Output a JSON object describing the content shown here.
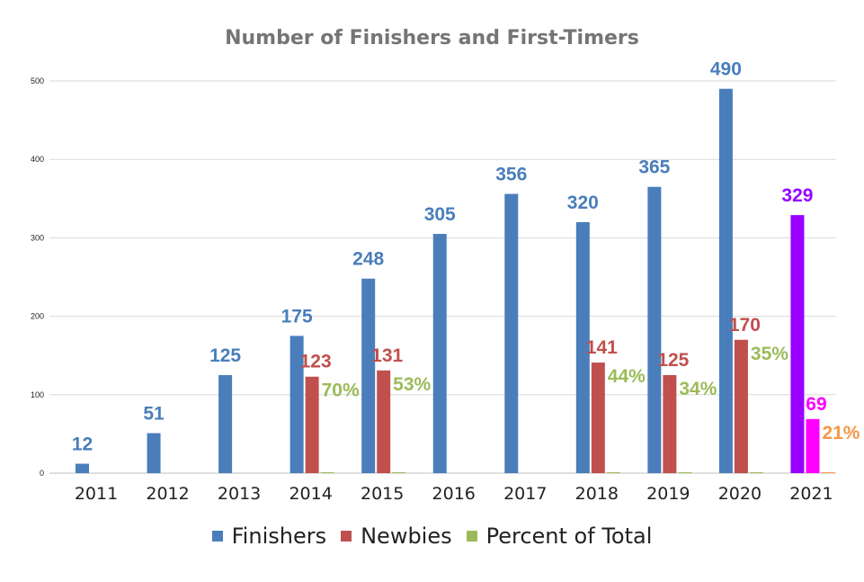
{
  "chart_data": {
    "type": "bar",
    "title": "Number of Finishers and First-Timers",
    "xlabel": "",
    "ylabel": "",
    "ylim": [
      0,
      500
    ],
    "yticks": [
      0,
      100,
      200,
      300,
      400,
      500
    ],
    "grid": true,
    "legend_position": "bottom",
    "categories": [
      "2011",
      "2012",
      "2013",
      "2014",
      "2015",
      "2016",
      "2017",
      "2018",
      "2019",
      "2020",
      "2021"
    ],
    "series": [
      {
        "name": "Finishers",
        "color": "#4a7ebb",
        "values": [
          12,
          51,
          125,
          175,
          248,
          305,
          356,
          320,
          365,
          490,
          329
        ],
        "labels": [
          "12",
          "51",
          "125",
          "175",
          "248",
          "305",
          "356",
          "320",
          "365",
          "490",
          "329"
        ],
        "point_colors": {
          "2021": "#9900ff"
        }
      },
      {
        "name": "Newbies",
        "color": "#c0504d",
        "values": [
          null,
          null,
          null,
          123,
          131,
          null,
          null,
          141,
          125,
          170,
          69
        ],
        "labels": [
          "",
          "",
          "",
          "123",
          "131",
          "",
          "",
          "141",
          "125",
          "170",
          "69"
        ],
        "point_colors": {
          "2021": "#ff00ff"
        }
      },
      {
        "name": "Percent of Total",
        "color": "#9bbb59",
        "values": [
          null,
          null,
          null,
          0.7,
          0.53,
          null,
          null,
          0.44,
          0.34,
          0.35,
          0.21
        ],
        "labels": [
          "",
          "",
          "",
          "70%",
          "53%",
          "",
          "",
          "44%",
          "34%",
          "35%",
          "21%"
        ],
        "point_colors": {
          "2021": "#f79646"
        }
      }
    ]
  }
}
